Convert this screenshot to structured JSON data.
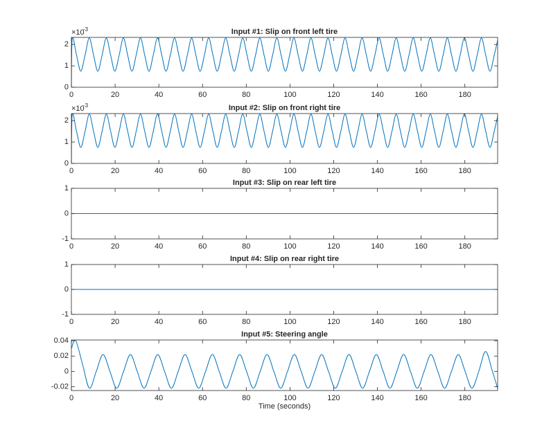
{
  "chart_data": [
    {
      "type": "line",
      "title": "Input #1: Slip on front left tire",
      "color": "#0072bd",
      "y_exponent": {
        "base": "×10",
        "power": "-3"
      },
      "x": [
        0,
        0.4,
        2.35,
        4.3,
        6.25,
        8.2,
        10.15,
        12.1,
        14.05,
        16,
        17.95,
        19.9,
        21.85,
        23.8,
        25.75,
        27.7,
        29.65,
        31.6,
        33.55,
        35.5,
        37.45,
        39.4,
        41.35,
        43.3,
        45.25,
        47.2,
        49.15,
        51.1,
        53.05,
        55,
        56.95,
        58.9,
        60.85,
        62.8,
        64.75,
        66.7,
        68.65,
        70.6,
        72.55,
        74.5,
        76.45,
        78.4,
        80.35,
        82.3,
        84.25,
        86.2,
        88.15,
        90.1,
        92.05,
        94,
        95.95,
        97.9,
        99.85,
        101.8,
        103.75,
        105.7,
        107.65,
        109.6,
        111.55,
        113.5,
        115.45,
        117.4,
        119.35,
        121.3,
        123.25,
        125.2,
        127.15,
        129.1,
        131.05,
        133,
        134.95,
        136.9,
        138.85,
        140.8,
        142.75,
        144.7,
        146.65,
        148.6,
        150.55,
        152.5,
        154.45,
        156.4,
        158.35,
        160.3,
        162.25,
        164.2,
        166.15,
        168.1,
        170.05,
        172,
        173.95,
        175.9,
        177.85,
        179.8,
        181.75,
        183.7,
        185.65,
        187.6,
        189.55,
        191.5,
        193.45,
        195
      ],
      "values": [
        0,
        0.0023,
        0.0015,
        0.00075,
        0.0015,
        0.0023,
        0.0015,
        0.00075,
        0.0015,
        0.0023,
        0.0015,
        0.00075,
        0.0015,
        0.0023,
        0.0015,
        0.00075,
        0.0015,
        0.0023,
        0.0015,
        0.00075,
        0.0015,
        0.0023,
        0.0015,
        0.00075,
        0.0015,
        0.0023,
        0.0015,
        0.00075,
        0.0015,
        0.0023,
        0.0015,
        0.00075,
        0.0015,
        0.0023,
        0.0015,
        0.00075,
        0.0015,
        0.0023,
        0.0015,
        0.00075,
        0.0015,
        0.0023,
        0.0015,
        0.00075,
        0.0015,
        0.0023,
        0.0015,
        0.00075,
        0.0015,
        0.0023,
        0.0015,
        0.00075,
        0.0015,
        0.0023,
        0.0015,
        0.00075,
        0.0015,
        0.0023,
        0.0015,
        0.00075,
        0.0015,
        0.0023,
        0.0015,
        0.00075,
        0.0015,
        0.0023,
        0.0015,
        0.00075,
        0.0015,
        0.0023,
        0.0015,
        0.00075,
        0.0015,
        0.0023,
        0.0015,
        0.00075,
        0.0015,
        0.0023,
        0.0015,
        0.00075,
        0.0015,
        0.0023,
        0.0015,
        0.00075,
        0.0015,
        0.0023,
        0.0015,
        0.00075,
        0.0015,
        0.0023,
        0.0015,
        0.00075,
        0.0015,
        0.0023,
        0.0015,
        0.00075,
        0.0015,
        0.0023,
        0.0015,
        0.00075,
        0.0015,
        0.0022
      ],
      "xlim": [
        0,
        195
      ],
      "xticks": [
        0,
        20,
        40,
        60,
        80,
        100,
        120,
        140,
        160,
        180
      ],
      "ylim": [
        0,
        0.00233
      ],
      "yticks": [
        0,
        {
          "value": 0.001,
          "label": "1"
        },
        {
          "value": 0.002,
          "label": "2"
        }
      ]
    },
    {
      "type": "line",
      "title": "Input #2: Slip on front right tire",
      "color": "#0072bd",
      "y_exponent": {
        "base": "×10",
        "power": "-3"
      },
      "x": [
        0,
        0.4,
        2.35,
        4.3,
        6.25,
        8.2,
        10.15,
        12.1,
        14.05,
        16,
        17.95,
        19.9,
        21.85,
        23.8,
        25.75,
        27.7,
        29.65,
        31.6,
        33.55,
        35.5,
        37.45,
        39.4,
        41.35,
        43.3,
        45.25,
        47.2,
        49.15,
        51.1,
        53.05,
        55,
        56.95,
        58.9,
        60.85,
        62.8,
        64.75,
        66.7,
        68.65,
        70.6,
        72.55,
        74.5,
        76.45,
        78.4,
        80.35,
        82.3,
        84.25,
        86.2,
        88.15,
        90.1,
        92.05,
        94,
        95.95,
        97.9,
        99.85,
        101.8,
        103.75,
        105.7,
        107.65,
        109.6,
        111.55,
        113.5,
        115.45,
        117.4,
        119.35,
        121.3,
        123.25,
        125.2,
        127.15,
        129.1,
        131.05,
        133,
        134.95,
        136.9,
        138.85,
        140.8,
        142.75,
        144.7,
        146.65,
        148.6,
        150.55,
        152.5,
        154.45,
        156.4,
        158.35,
        160.3,
        162.25,
        164.2,
        166.15,
        168.1,
        170.05,
        172,
        173.95,
        175.9,
        177.85,
        179.8,
        181.75,
        183.7,
        185.65,
        187.6,
        189.55,
        191.5,
        193.45,
        195
      ],
      "values": [
        0,
        0.0023,
        0.0015,
        0.00075,
        0.0015,
        0.0023,
        0.0015,
        0.00075,
        0.0015,
        0.0023,
        0.0015,
        0.00075,
        0.0015,
        0.0023,
        0.0015,
        0.00075,
        0.0015,
        0.0023,
        0.0015,
        0.00075,
        0.0015,
        0.0023,
        0.0015,
        0.00075,
        0.0015,
        0.0023,
        0.0015,
        0.00075,
        0.0015,
        0.0023,
        0.0015,
        0.00075,
        0.0015,
        0.0023,
        0.0015,
        0.00075,
        0.0015,
        0.0023,
        0.0015,
        0.00075,
        0.0015,
        0.0023,
        0.0015,
        0.00075,
        0.0015,
        0.0023,
        0.0015,
        0.00075,
        0.0015,
        0.0023,
        0.0015,
        0.00075,
        0.0015,
        0.0023,
        0.0015,
        0.00075,
        0.0015,
        0.0023,
        0.0015,
        0.00075,
        0.0015,
        0.0023,
        0.0015,
        0.00075,
        0.0015,
        0.0023,
        0.0015,
        0.00075,
        0.0015,
        0.0023,
        0.0015,
        0.00075,
        0.0015,
        0.0023,
        0.0015,
        0.00075,
        0.0015,
        0.0023,
        0.0015,
        0.00075,
        0.0015,
        0.0023,
        0.0015,
        0.00075,
        0.0015,
        0.0023,
        0.0015,
        0.00075,
        0.0015,
        0.0023,
        0.0015,
        0.00075,
        0.0015,
        0.0023,
        0.0015,
        0.00075,
        0.0015,
        0.0023,
        0.0015,
        0.00075,
        0.0015,
        0.0022
      ],
      "xlim": [
        0,
        195
      ],
      "xticks": [
        0,
        20,
        40,
        60,
        80,
        100,
        120,
        140,
        160,
        180
      ],
      "ylim": [
        0,
        0.00233
      ],
      "yticks": [
        0,
        {
          "value": 0.001,
          "label": "1"
        },
        {
          "value": 0.002,
          "label": "2"
        }
      ]
    },
    {
      "type": "line",
      "title": "Input #3: Slip on rear left tire",
      "color": "#0072bd",
      "x": [
        0,
        195
      ],
      "values": [
        0,
        0
      ],
      "xlim": [
        0,
        195
      ],
      "xticks": [
        0,
        20,
        40,
        60,
        80,
        100,
        120,
        140,
        160,
        180
      ],
      "ylim": [
        -1,
        1
      ],
      "yticks": [
        -1,
        0,
        1
      ]
    },
    {
      "type": "line",
      "title": "Input #4: Slip on rear right tire",
      "color": "#0072bd",
      "x": [
        0,
        195
      ],
      "values": [
        0,
        0
      ],
      "xlim": [
        0,
        195
      ],
      "xticks": [
        0,
        20,
        40,
        60,
        80,
        100,
        120,
        140,
        160,
        180
      ],
      "ylim": [
        -1,
        1
      ],
      "yticks": [
        -1,
        0,
        1
      ]
    },
    {
      "type": "line",
      "title": "Input #5: Steering angle",
      "x_label": "Time (seconds)",
      "color": "#0072bd",
      "x": [
        0,
        2,
        5.125,
        8.25,
        11.375,
        14.5,
        17.625,
        20.75,
        23.875,
        27,
        30.125,
        33.25,
        36.375,
        39.5,
        42.625,
        45.75,
        48.875,
        52,
        55.125,
        58.25,
        61.375,
        64.5,
        67.625,
        70.75,
        73.875,
        77,
        80.125,
        83.25,
        86.375,
        89.5,
        92.625,
        95.75,
        98.875,
        102,
        105.125,
        108.25,
        111.375,
        114.5,
        117.625,
        120.75,
        123.875,
        127,
        130.125,
        133.25,
        136.375,
        139.5,
        142.625,
        145.75,
        148.875,
        152,
        155.125,
        158.25,
        161.375,
        164.5,
        167.625,
        170.75,
        173.875,
        177,
        180.125,
        183.25,
        186.375,
        189.5,
        192.625,
        195
      ],
      "values": [
        0.03,
        0.04,
        0.009,
        -0.022,
        0,
        0.022,
        0,
        -0.022,
        0,
        0.022,
        0,
        -0.022,
        0,
        0.022,
        0,
        -0.022,
        0,
        0.022,
        0,
        -0.022,
        0,
        0.022,
        0,
        -0.022,
        0,
        0.022,
        0,
        -0.022,
        0,
        0.022,
        0,
        -0.022,
        0,
        0.022,
        0,
        -0.022,
        0,
        0.022,
        0,
        -0.022,
        0,
        0.022,
        0,
        -0.022,
        0,
        0.022,
        0,
        -0.022,
        0,
        0.022,
        0,
        -0.022,
        0,
        0.022,
        0,
        -0.022,
        0,
        0.022,
        0,
        -0.022,
        0,
        0.026,
        0,
        -0.022
      ],
      "xlim": [
        0,
        195
      ],
      "xticks": [
        0,
        20,
        40,
        60,
        80,
        100,
        120,
        140,
        160,
        180
      ],
      "ylim": [
        -0.025,
        0.041
      ],
      "yticks": [
        -0.02,
        0,
        0.02,
        0.04
      ]
    }
  ]
}
